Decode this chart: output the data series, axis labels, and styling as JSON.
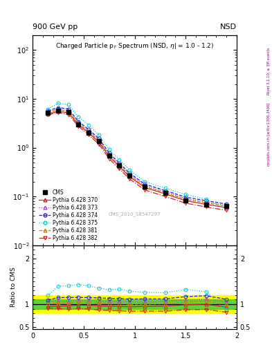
{
  "title_top": "900 GeV pp",
  "title_right": "NSD",
  "main_title": "Charged Particle p$_T$ Spectrum (NSD, h| = 1.0 - 1.2)",
  "watermark": "CMS_2010_S8547297",
  "right_label": "Rivet 3.1.10, ≥ 3M events",
  "right_label2": "mcplots.cern.ch [arXiv:1306.3436]",
  "ylabel_ratio": "Ratio to CMS",
  "cms_x": [
    0.15,
    0.25,
    0.35,
    0.45,
    0.55,
    0.65,
    0.75,
    0.85,
    0.95,
    1.1,
    1.3,
    1.5,
    1.7,
    1.9
  ],
  "cms_y": [
    5.2,
    5.8,
    5.4,
    3.0,
    2.05,
    1.35,
    0.69,
    0.43,
    0.27,
    0.16,
    0.118,
    0.083,
    0.069,
    0.063
  ],
  "cms_yerr": [
    0.35,
    0.35,
    0.35,
    0.18,
    0.13,
    0.09,
    0.045,
    0.028,
    0.018,
    0.011,
    0.009,
    0.006,
    0.005,
    0.005
  ],
  "py370_y": [
    4.95,
    5.55,
    5.2,
    2.95,
    2.0,
    1.3,
    0.66,
    0.41,
    0.255,
    0.152,
    0.113,
    0.082,
    0.069,
    0.059
  ],
  "py373_y": [
    5.5,
    6.2,
    5.75,
    3.25,
    2.2,
    1.44,
    0.73,
    0.455,
    0.283,
    0.168,
    0.125,
    0.091,
    0.077,
    0.066
  ],
  "py374_y": [
    5.7,
    6.65,
    6.2,
    3.45,
    2.35,
    1.54,
    0.78,
    0.485,
    0.301,
    0.179,
    0.132,
    0.097,
    0.082,
    0.07
  ],
  "py375_y": [
    6.2,
    8.1,
    7.6,
    4.3,
    2.88,
    1.83,
    0.91,
    0.575,
    0.348,
    0.202,
    0.148,
    0.11,
    0.088,
    0.055
  ],
  "py381_y": [
    5.25,
    5.95,
    5.55,
    3.15,
    2.12,
    1.39,
    0.7,
    0.435,
    0.27,
    0.16,
    0.119,
    0.087,
    0.074,
    0.063
  ],
  "py382_y": [
    4.75,
    5.25,
    4.8,
    2.72,
    1.83,
    1.18,
    0.595,
    0.368,
    0.229,
    0.136,
    0.1,
    0.073,
    0.061,
    0.052
  ],
  "band_green_lo": 0.9,
  "band_green_hi": 1.1,
  "band_yellow_lo": 0.8,
  "band_yellow_hi": 1.2,
  "color_cms": "#000000",
  "color_370": "#cc2222",
  "color_373": "#aa44cc",
  "color_374": "#2222cc",
  "color_375": "#00cccc",
  "color_381": "#cc8800",
  "color_382": "#cc2222"
}
